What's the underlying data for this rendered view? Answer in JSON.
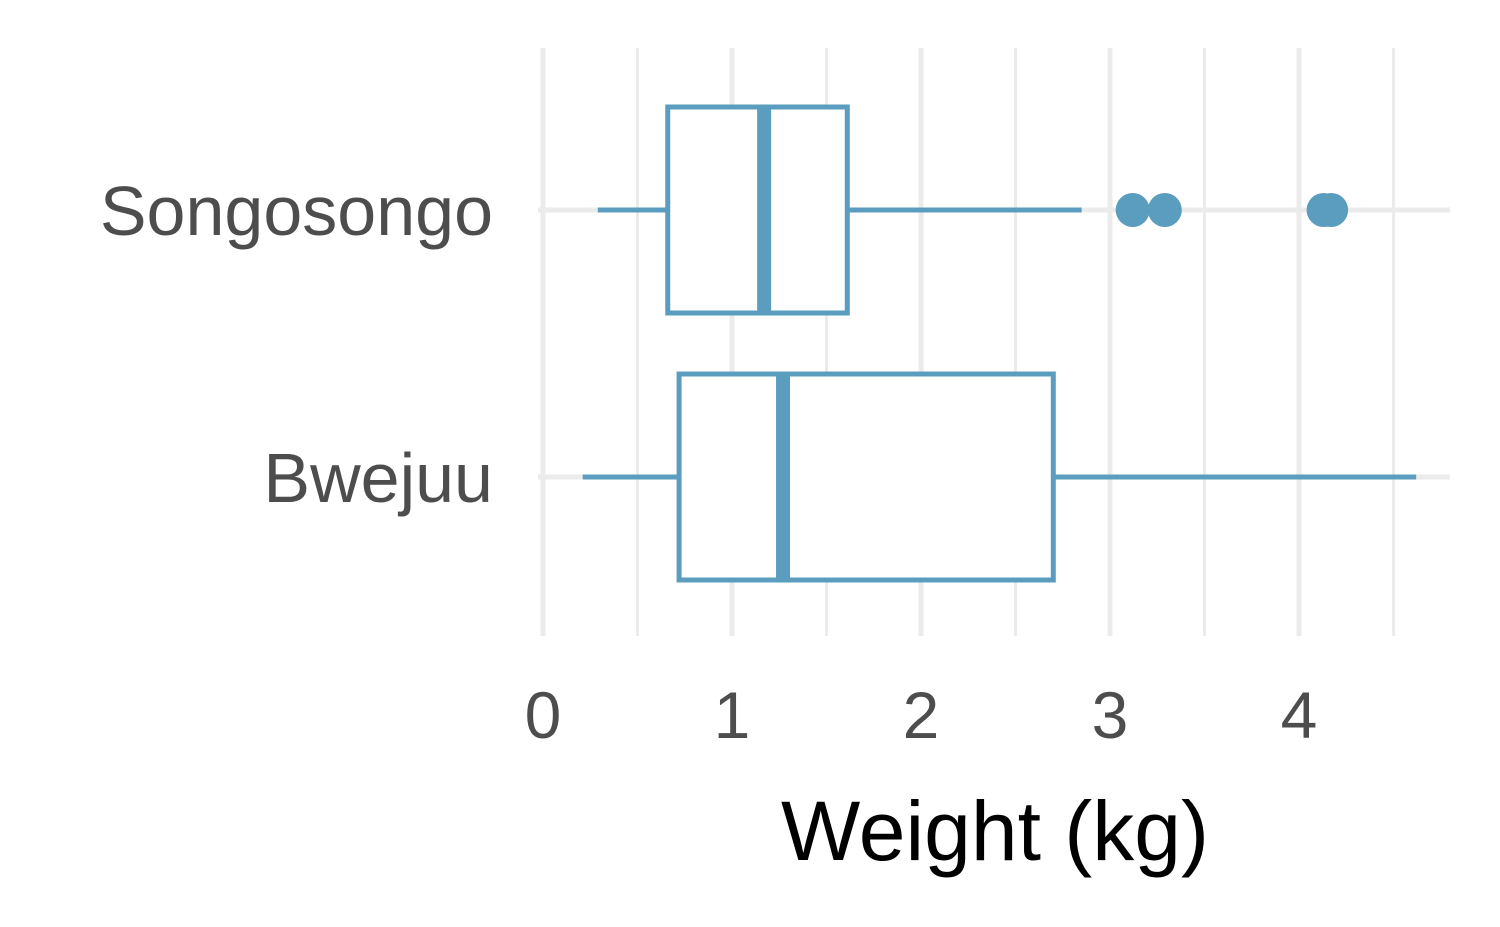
{
  "chart_data": {
    "type": "boxplot",
    "orientation": "horizontal",
    "xlabel": "Weight (kg)",
    "xlim": [
      -0.05,
      4.82
    ],
    "xticks": [
      0,
      1,
      2,
      3,
      4
    ],
    "xtick_labels": [
      "0",
      "1",
      "2",
      "3",
      "4"
    ],
    "grid": true,
    "color": "#5b9dbe",
    "categories": [
      "Songosongo",
      "Bwejuu"
    ],
    "boxes": [
      {
        "category": "Songosongo",
        "whisker_low": 0.29,
        "q1": 0.66,
        "median": 1.17,
        "q3": 1.61,
        "whisker_high": 2.85,
        "outliers": [
          3.12,
          3.29,
          4.13,
          4.17
        ]
      },
      {
        "category": "Bwejuu",
        "whisker_low": 0.21,
        "q1": 0.72,
        "median": 1.27,
        "q3": 2.7,
        "whisker_high": 4.62,
        "outliers": []
      }
    ]
  }
}
